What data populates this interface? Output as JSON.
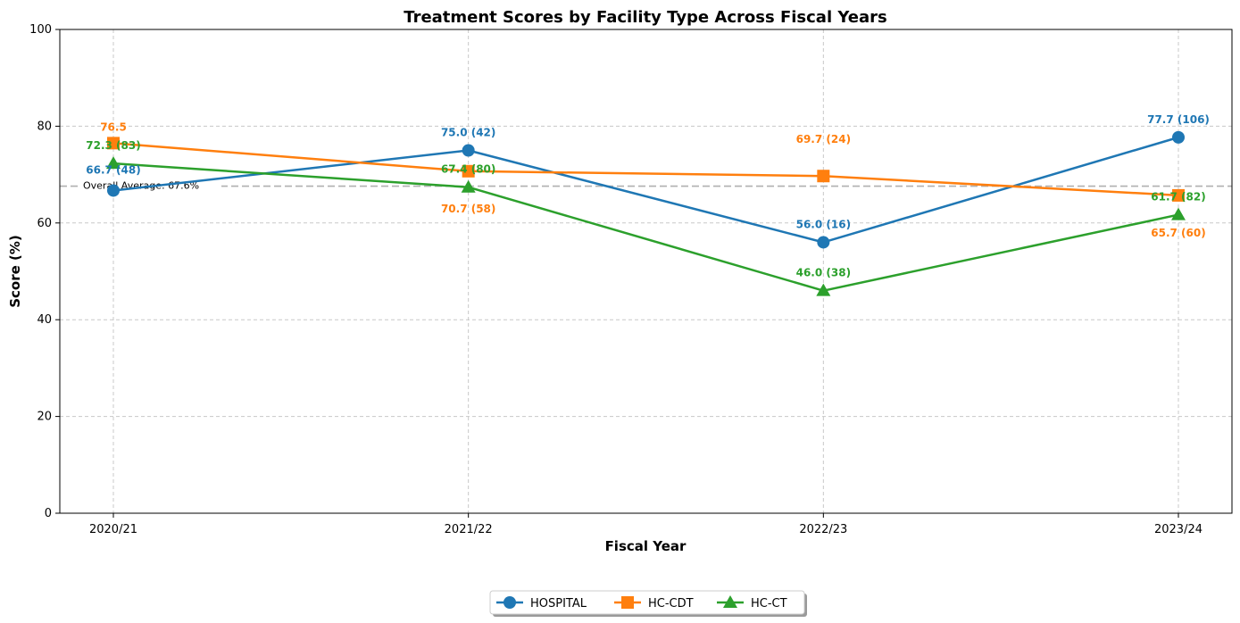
{
  "chart_data": {
    "type": "line",
    "title": "Treatment Scores by Facility Type Across Fiscal Years",
    "xlabel": "Fiscal Year",
    "ylabel": "Score (%)",
    "categories": [
      "2020/21",
      "2021/22",
      "2022/23",
      "2023/24"
    ],
    "ylim": [
      0,
      100
    ],
    "yticks": [
      0,
      20,
      40,
      60,
      80,
      100
    ],
    "grid": true,
    "legend_position": "bottom-center",
    "reference_line": {
      "label": "Overall Average: 67.6%",
      "value": 67.6
    },
    "series": [
      {
        "name": "HOSPITAL",
        "color": "#1f77b4",
        "marker": "circle",
        "values": [
          66.7,
          75.0,
          56.0,
          77.7
        ],
        "labels": [
          "66.7 (48)",
          "75.0 (42)",
          "56.0 (16)",
          "77.7 (106)"
        ]
      },
      {
        "name": "HC-CDT",
        "color": "#ff7f0e",
        "marker": "square",
        "values": [
          76.5,
          70.7,
          69.7,
          65.7
        ],
        "labels": [
          "76.5",
          "70.7 (58)",
          "69.7 (24)",
          "65.7 (60)"
        ]
      },
      {
        "name": "HC-CT",
        "color": "#2ca02c",
        "marker": "triangle",
        "values": [
          72.3,
          67.4,
          46.0,
          61.7
        ],
        "labels": [
          "72.3 (83)",
          "67.4 (80)",
          "46.0 (38)",
          "61.7 (82)"
        ]
      }
    ]
  }
}
